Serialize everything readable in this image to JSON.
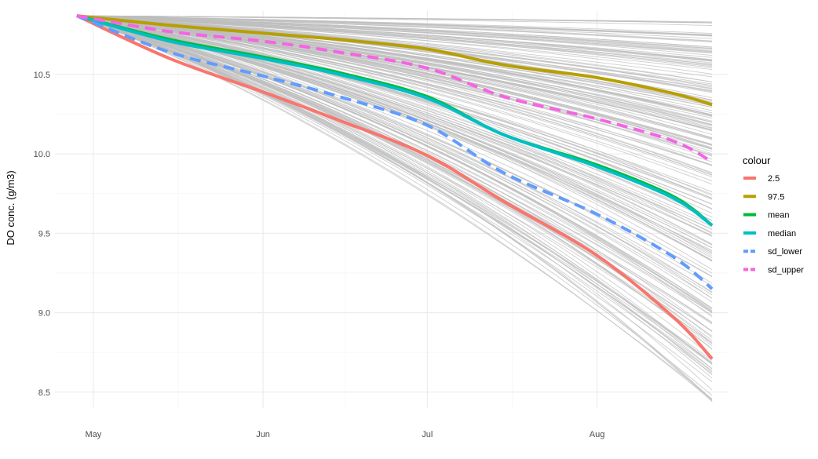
{
  "chart_data": {
    "type": "line",
    "title": "",
    "xlabel": "",
    "ylabel": "DO conc. (g/m3)",
    "x_ticks": [
      {
        "date": "2019-05-01",
        "label": "May"
      },
      {
        "date": "2019-06-01",
        "label": "Jun"
      },
      {
        "date": "2019-07-01",
        "label": "Jul"
      },
      {
        "date": "2019-08-01",
        "label": "Aug"
      }
    ],
    "xlim": [
      "2019-04-24",
      "2019-08-25"
    ],
    "ylim": [
      8.4,
      10.9
    ],
    "y_ticks": [
      8.5,
      9.0,
      9.5,
      10.0,
      10.5
    ],
    "grid": true,
    "legend": {
      "title": "colour",
      "position": "right"
    },
    "x": [
      "2019-04-28",
      "2019-05-15",
      "2019-06-01",
      "2019-06-15",
      "2019-07-01",
      "2019-07-15",
      "2019-08-01",
      "2019-08-15",
      "2019-08-22"
    ],
    "series": [
      {
        "name": "2.5",
        "color": "#F8766D",
        "dash": false,
        "values": [
          10.87,
          10.6,
          10.39,
          10.21,
          9.99,
          9.7,
          9.36,
          8.97,
          8.71
        ]
      },
      {
        "name": "97.5",
        "color": "#B79F00",
        "dash": false,
        "values": [
          10.87,
          10.81,
          10.76,
          10.72,
          10.66,
          10.56,
          10.48,
          10.38,
          10.31
        ]
      },
      {
        "name": "mean",
        "color": "#00BA38",
        "dash": false,
        "values": [
          10.87,
          10.72,
          10.61,
          10.51,
          10.36,
          10.12,
          9.93,
          9.73,
          9.55
        ]
      },
      {
        "name": "median",
        "color": "#00BFC4",
        "dash": false,
        "values": [
          10.87,
          10.71,
          10.6,
          10.5,
          10.35,
          10.12,
          9.92,
          9.72,
          9.55
        ]
      },
      {
        "name": "sd_lower",
        "color": "#619CFF",
        "dash": true,
        "values": [
          10.87,
          10.64,
          10.49,
          10.36,
          10.18,
          9.88,
          9.62,
          9.35,
          9.15
        ]
      },
      {
        "name": "sd_upper",
        "color": "#F564E3",
        "dash": true,
        "values": [
          10.87,
          10.77,
          10.71,
          10.64,
          10.54,
          10.36,
          10.22,
          10.08,
          9.95
        ]
      }
    ],
    "ensemble": {
      "color": "#bdbdbd",
      "count": 220,
      "start_value": 10.87,
      "end_min": 8.44,
      "end_max": 10.84
    }
  }
}
